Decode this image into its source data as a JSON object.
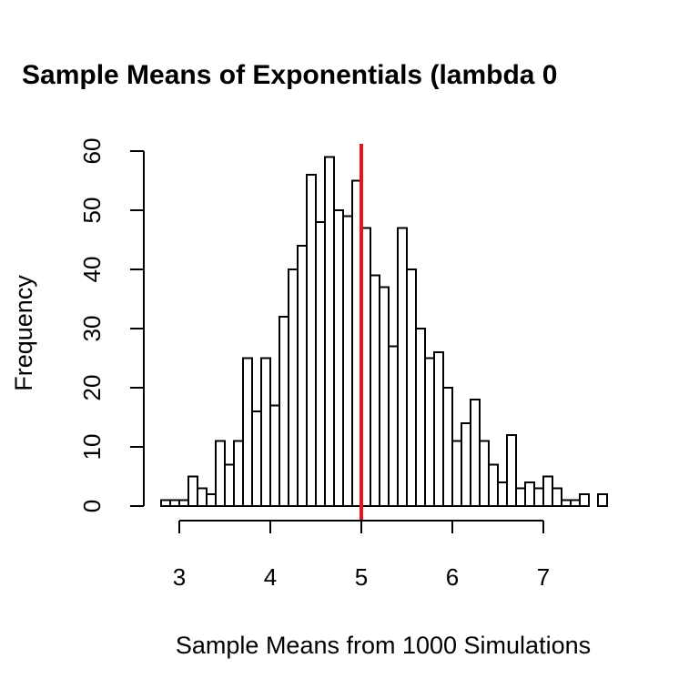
{
  "chart_data": {
    "type": "bar",
    "title": "Sample Means of Exponentials (lambda 0",
    "xlabel": "Sample Means from 1000 Simulations",
    "ylabel": "Frequency",
    "bin_width": 0.1,
    "bin_start": 2.8,
    "frequencies": [
      1,
      1,
      1,
      5,
      3,
      2,
      11,
      7,
      11,
      25,
      16,
      25,
      17,
      32,
      40,
      44,
      56,
      48,
      59,
      50,
      49,
      55,
      47,
      39,
      37,
      27,
      47,
      40,
      30,
      25,
      26,
      20,
      11,
      14,
      18,
      11,
      7,
      4,
      12,
      3,
      4,
      3,
      5,
      3,
      1,
      1,
      2,
      0,
      2
    ],
    "xlim": [
      2.8,
      7.7
    ],
    "ylim": [
      0,
      60
    ],
    "x_ticks": [
      3,
      4,
      5,
      6,
      7
    ],
    "y_ticks": [
      0,
      10,
      20,
      30,
      40,
      50,
      60
    ],
    "reference_line": {
      "x": 5,
      "color": "#e8141c"
    },
    "grid": false
  }
}
